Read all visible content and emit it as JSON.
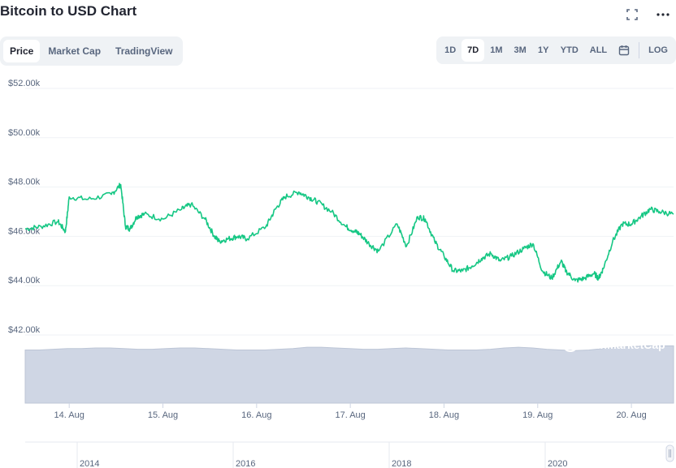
{
  "title": "Bitcoin to USD Chart",
  "header_icons": [
    "expand-icon",
    "more-icon"
  ],
  "tabs": [
    {
      "label": "Price",
      "active": true
    },
    {
      "label": "Market Cap",
      "active": false
    },
    {
      "label": "TradingView",
      "active": false
    }
  ],
  "ranges": [
    {
      "label": "1D",
      "active": false
    },
    {
      "label": "7D",
      "active": true
    },
    {
      "label": "1M",
      "active": false
    },
    {
      "label": "3M",
      "active": false
    },
    {
      "label": "1Y",
      "active": false
    },
    {
      "label": "YTD",
      "active": false
    },
    {
      "label": "ALL",
      "active": false
    }
  ],
  "calendar_icon": "calendar-icon",
  "log_label": "LOG",
  "watermark": "CoinMarketCap",
  "colors": {
    "line": "#16c784",
    "volume": "#cfd6e4",
    "grid": "#eff2f5",
    "axis_text": "#58667e"
  },
  "chart_data": {
    "type": "line",
    "title": "Bitcoin to USD Chart",
    "y_ticks": [
      "$52.00k",
      "$50.00k",
      "$48.00k",
      "$46.00k",
      "$44.00k",
      "$42.00k"
    ],
    "ylim": [
      42000,
      52000
    ],
    "x_ticks": [
      "14. Aug",
      "15. Aug",
      "16. Aug",
      "17. Aug",
      "18. Aug",
      "19. Aug",
      "20. Aug"
    ],
    "xlim": [
      13.53,
      20.45
    ],
    "grid": true,
    "series": [
      {
        "x": [
          13.53,
          13.7,
          13.88,
          13.96,
          14.0,
          14.2,
          14.45,
          14.55,
          14.6,
          14.65,
          14.72,
          14.8,
          15.0,
          15.2,
          15.3,
          15.45,
          15.55,
          15.6,
          15.7,
          15.8,
          15.9,
          16.1,
          16.2,
          16.3,
          16.45,
          16.55,
          16.65,
          16.8,
          16.95,
          17.05,
          17.1,
          17.2,
          17.3,
          17.5,
          17.6,
          17.72,
          17.8,
          17.9,
          18.0,
          18.1,
          18.2,
          18.3,
          18.4,
          18.5,
          18.6,
          18.72,
          18.85,
          18.95,
          19.05,
          19.15,
          19.25,
          19.3,
          19.4,
          19.5,
          19.6,
          19.65,
          19.7,
          19.8,
          19.9,
          20.0,
          20.1,
          20.2,
          20.3,
          20.45
        ],
        "y": [
          46300,
          46400,
          46600,
          46200,
          47600,
          47500,
          47700,
          48100,
          46400,
          46300,
          46800,
          46900,
          46700,
          47100,
          47300,
          46700,
          46000,
          45800,
          45900,
          46000,
          45900,
          46400,
          47100,
          47600,
          47800,
          47600,
          47400,
          47000,
          46400,
          46200,
          46100,
          45700,
          45400,
          46500,
          45600,
          46800,
          46700,
          45800,
          45200,
          44600,
          44600,
          44800,
          45100,
          45300,
          45000,
          45200,
          45500,
          45700,
          44600,
          44300,
          45000,
          44600,
          44200,
          44300,
          44500,
          44300,
          44700,
          45800,
          46500,
          46500,
          46800,
          47100,
          47000,
          46900
        ]
      }
    ],
    "volume": [
      0.78,
      0.78,
      0.79,
      0.8,
      0.8,
      0.81,
      0.81,
      0.8,
      0.79,
      0.79,
      0.8,
      0.81,
      0.81,
      0.8,
      0.79,
      0.78,
      0.78,
      0.78,
      0.79,
      0.8,
      0.82,
      0.82,
      0.81,
      0.8,
      0.79,
      0.79,
      0.8,
      0.81,
      0.8,
      0.79,
      0.78,
      0.78,
      0.78,
      0.79,
      0.81,
      0.82,
      0.81,
      0.79,
      0.78,
      0.77,
      0.78,
      0.8,
      0.82,
      0.83,
      0.84,
      0.84,
      0.84
    ]
  },
  "navigator": {
    "years": [
      "2014",
      "2016",
      "2018",
      "2020"
    ]
  }
}
